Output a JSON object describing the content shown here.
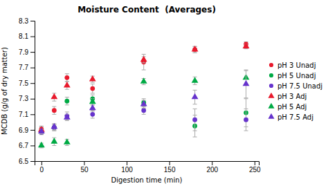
{
  "chart_data": {
    "type": "scatter",
    "title": "Moisture Content  (Averages)",
    "x_label": "Digestion time (min)",
    "y_label": "MCDB (g/g of dry matter)",
    "xlim": [
      -8,
      255
    ],
    "ylim": [
      6.5,
      8.3
    ],
    "xticks": [
      0,
      50,
      100,
      150,
      200,
      250
    ],
    "yticks": [
      6.5,
      6.7,
      6.9,
      7.1,
      7.3,
      7.5,
      7.7,
      7.9,
      8.1,
      8.3
    ],
    "grid": false,
    "legend": "right",
    "series": [
      {
        "name": "pH 3 Unadj",
        "color": "#e8192c",
        "marker": "circle",
        "x": [
          0,
          15,
          30,
          60,
          120,
          180,
          240
        ],
        "values": [
          6.91,
          7.15,
          7.57,
          7.43,
          7.77,
          7.93,
          8.0
        ],
        "errors": [
          0.04,
          0.05,
          0.05,
          0.06,
          0.1,
          0.04,
          0.03
        ]
      },
      {
        "name": "pH 5 Unadj",
        "color": "#00aa44",
        "marker": "circle",
        "x": [
          0,
          15,
          30,
          60,
          120,
          180,
          240
        ],
        "values": [
          6.87,
          6.93,
          7.27,
          7.3,
          7.25,
          6.95,
          7.12
        ],
        "errors": [
          0.03,
          0.04,
          0.05,
          0.05,
          0.05,
          0.14,
          0.18
        ]
      },
      {
        "name": "pH 7.5 Unadj",
        "color": "#6633cc",
        "marker": "circle",
        "x": [
          0,
          15,
          30,
          60,
          120,
          180,
          240
        ],
        "values": [
          6.87,
          6.93,
          7.08,
          7.1,
          7.15,
          7.03,
          7.03
        ],
        "errors": [
          0.03,
          0.04,
          0.05,
          0.05,
          0.05,
          0.14,
          0.14
        ]
      },
      {
        "name": "pH 3 Adj",
        "color": "#e8192c",
        "marker": "triangle",
        "x": [
          0,
          15,
          30,
          60,
          120,
          180,
          240
        ],
        "values": [
          6.9,
          7.32,
          7.47,
          7.55,
          7.8,
          7.93,
          7.97
        ],
        "errors": [
          0.04,
          0.05,
          0.05,
          0.04,
          0.04,
          0.04,
          0.03
        ]
      },
      {
        "name": "pH 5 Adj",
        "color": "#00aa44",
        "marker": "triangle",
        "x": [
          0,
          15,
          30,
          60,
          120,
          180,
          240
        ],
        "values": [
          6.7,
          6.75,
          6.74,
          7.26,
          7.52,
          7.53,
          7.57
        ],
        "errors": [
          0.03,
          0.05,
          0.04,
          0.04,
          0.04,
          0.05,
          0.09
        ]
      },
      {
        "name": "pH 7.5 Adj",
        "color": "#6633cc",
        "marker": "triangle",
        "x": [
          0,
          15,
          30,
          60,
          120,
          180,
          240
        ],
        "values": [
          6.88,
          6.94,
          7.06,
          7.18,
          7.23,
          7.32,
          7.49
        ],
        "errors": [
          0.03,
          0.04,
          0.04,
          0.04,
          0.05,
          0.09,
          0.18
        ]
      }
    ]
  }
}
